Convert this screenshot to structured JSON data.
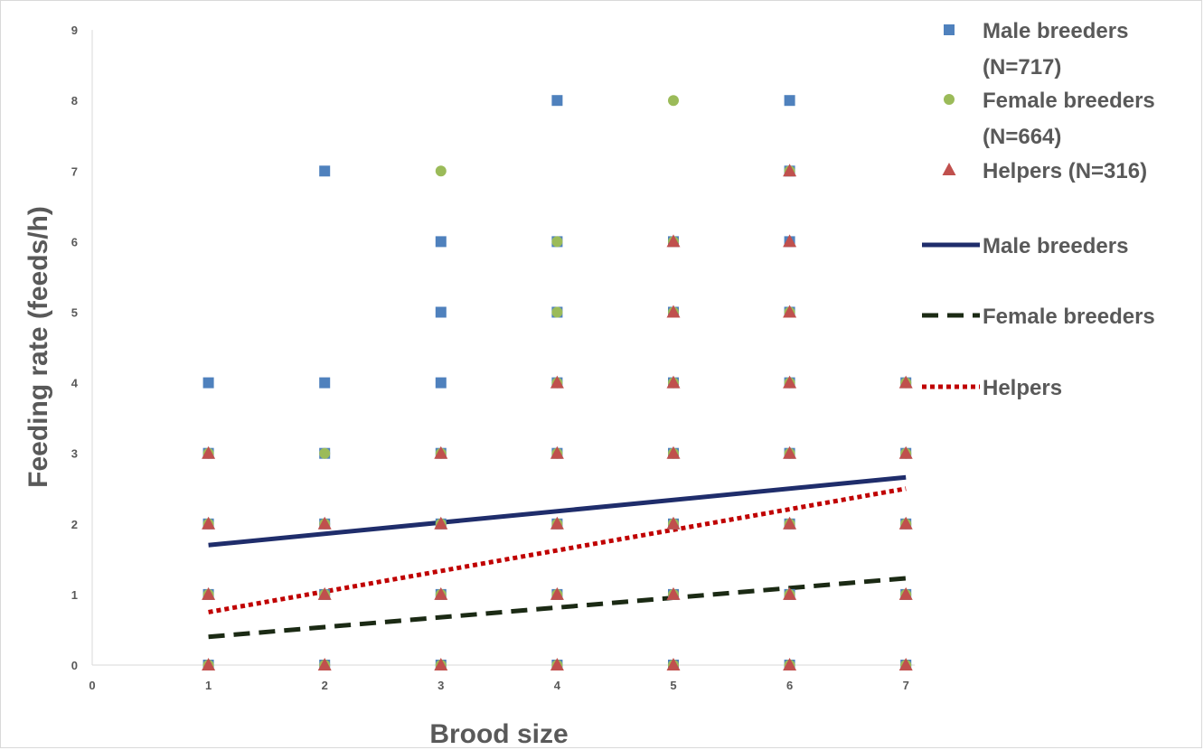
{
  "chart_data": {
    "type": "scatter",
    "xlabel": "Brood size",
    "ylabel": "Feeding rate (feeds/h)",
    "xlim": [
      0,
      7
    ],
    "ylim": [
      0,
      9
    ],
    "x_ticks": [
      "0",
      "1",
      "2",
      "3",
      "4",
      "5",
      "6",
      "7"
    ],
    "y_ticks": [
      "0",
      "1",
      "2",
      "3",
      "4",
      "5",
      "6",
      "7",
      "8",
      "9"
    ],
    "grid": false,
    "legend_position": "right",
    "series": [
      {
        "name": "Male breeders",
        "legend_label": [
          "Male breeders",
          "(N=717)"
        ],
        "marker": "square",
        "color": "#4f81bd",
        "points": [
          [
            1,
            0
          ],
          [
            1,
            1
          ],
          [
            1,
            2
          ],
          [
            1,
            3
          ],
          [
            1,
            4
          ],
          [
            2,
            0
          ],
          [
            2,
            1
          ],
          [
            2,
            2
          ],
          [
            2,
            3
          ],
          [
            2,
            4
          ],
          [
            2,
            7
          ],
          [
            3,
            0
          ],
          [
            3,
            1
          ],
          [
            3,
            2
          ],
          [
            3,
            3
          ],
          [
            3,
            4
          ],
          [
            3,
            5
          ],
          [
            3,
            6
          ],
          [
            4,
            0
          ],
          [
            4,
            1
          ],
          [
            4,
            2
          ],
          [
            4,
            3
          ],
          [
            4,
            4
          ],
          [
            4,
            5
          ],
          [
            4,
            6
          ],
          [
            4,
            8
          ],
          [
            5,
            0
          ],
          [
            5,
            1
          ],
          [
            5,
            2
          ],
          [
            5,
            3
          ],
          [
            5,
            4
          ],
          [
            5,
            5
          ],
          [
            5,
            6
          ],
          [
            6,
            0
          ],
          [
            6,
            1
          ],
          [
            6,
            2
          ],
          [
            6,
            3
          ],
          [
            6,
            4
          ],
          [
            6,
            5
          ],
          [
            6,
            6
          ],
          [
            6,
            7
          ],
          [
            6,
            8
          ],
          [
            7,
            0
          ],
          [
            7,
            1
          ],
          [
            7,
            2
          ],
          [
            7,
            3
          ],
          [
            7,
            4
          ]
        ]
      },
      {
        "name": "Female breeders",
        "legend_label": [
          "Female breeders",
          "(N=664)"
        ],
        "marker": "circle",
        "color": "#9bbb59",
        "points": [
          [
            1,
            0
          ],
          [
            1,
            1
          ],
          [
            1,
            2
          ],
          [
            1,
            3
          ],
          [
            2,
            0
          ],
          [
            2,
            1
          ],
          [
            2,
            2
          ],
          [
            2,
            3
          ],
          [
            3,
            0
          ],
          [
            3,
            1
          ],
          [
            3,
            2
          ],
          [
            3,
            3
          ],
          [
            3,
            7
          ],
          [
            4,
            0
          ],
          [
            4,
            1
          ],
          [
            4,
            2
          ],
          [
            4,
            3
          ],
          [
            4,
            4
          ],
          [
            4,
            5
          ],
          [
            4,
            6
          ],
          [
            5,
            0
          ],
          [
            5,
            1
          ],
          [
            5,
            2
          ],
          [
            5,
            3
          ],
          [
            5,
            4
          ],
          [
            5,
            5
          ],
          [
            5,
            6
          ],
          [
            5,
            8
          ],
          [
            6,
            0
          ],
          [
            6,
            1
          ],
          [
            6,
            2
          ],
          [
            6,
            3
          ],
          [
            6,
            4
          ],
          [
            6,
            5
          ],
          [
            6,
            7
          ],
          [
            7,
            0
          ],
          [
            7,
            1
          ],
          [
            7,
            2
          ],
          [
            7,
            3
          ],
          [
            7,
            4
          ]
        ]
      },
      {
        "name": "Helpers",
        "legend_label": [
          "Helpers (N=316)"
        ],
        "marker": "triangle",
        "color": "#c0504d",
        "points": [
          [
            1,
            0
          ],
          [
            1,
            1
          ],
          [
            1,
            2
          ],
          [
            1,
            3
          ],
          [
            2,
            0
          ],
          [
            2,
            1
          ],
          [
            2,
            2
          ],
          [
            3,
            0
          ],
          [
            3,
            1
          ],
          [
            3,
            2
          ],
          [
            3,
            3
          ],
          [
            4,
            0
          ],
          [
            4,
            1
          ],
          [
            4,
            2
          ],
          [
            4,
            3
          ],
          [
            4,
            4
          ],
          [
            5,
            0
          ],
          [
            5,
            1
          ],
          [
            5,
            2
          ],
          [
            5,
            3
          ],
          [
            5,
            4
          ],
          [
            5,
            5
          ],
          [
            5,
            6
          ],
          [
            6,
            0
          ],
          [
            6,
            1
          ],
          [
            6,
            2
          ],
          [
            6,
            3
          ],
          [
            6,
            4
          ],
          [
            6,
            5
          ],
          [
            6,
            6
          ],
          [
            6,
            7
          ],
          [
            7,
            0
          ],
          [
            7,
            1
          ],
          [
            7,
            2
          ],
          [
            7,
            3
          ],
          [
            7,
            4
          ]
        ]
      }
    ],
    "trendlines": [
      {
        "name": "Male breeders",
        "style": "solid",
        "color": "#1f2d6b",
        "x": [
          1,
          7
        ],
        "y": [
          1.7,
          2.66
        ]
      },
      {
        "name": "Female breeders",
        "style": "dashed",
        "color": "#1b2a14",
        "x": [
          1,
          7
        ],
        "y": [
          0.4,
          1.23
        ]
      },
      {
        "name": "Helpers",
        "style": "dotted",
        "color": "#c00000",
        "x": [
          1,
          7
        ],
        "y": [
          0.75,
          2.5
        ]
      }
    ]
  }
}
